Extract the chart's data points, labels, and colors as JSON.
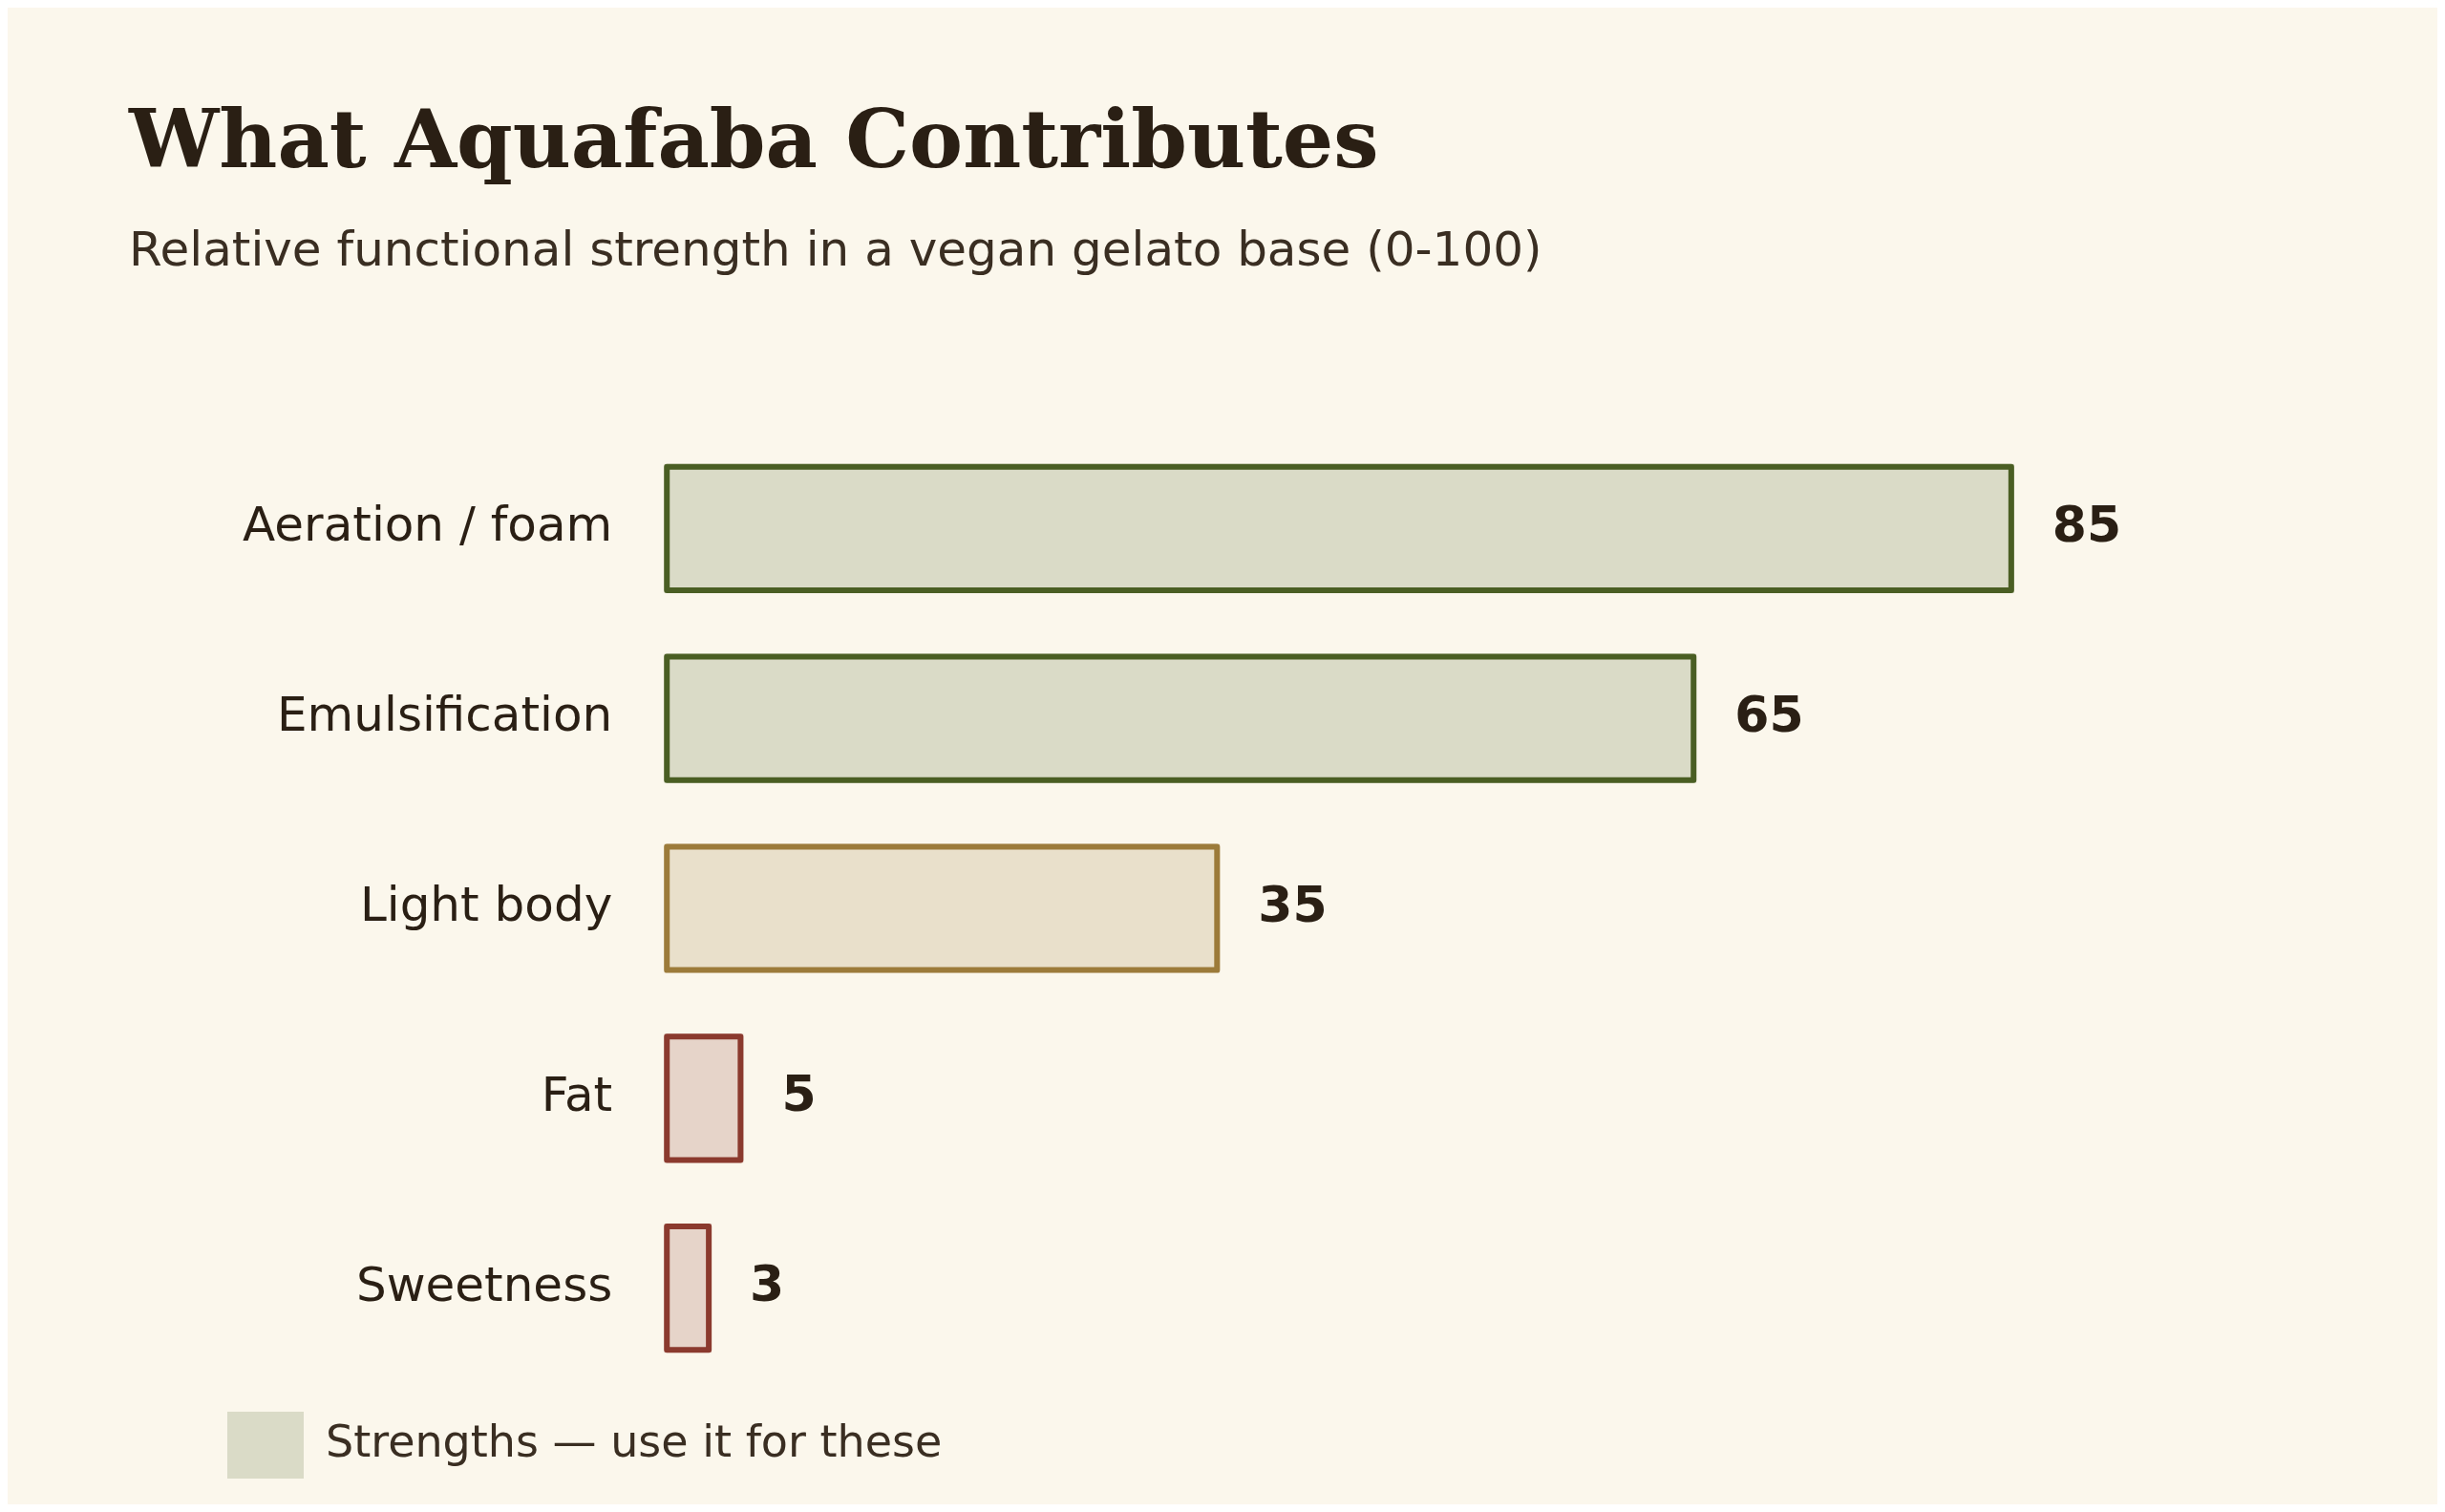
{
  "chart_data": {
    "type": "bar",
    "orientation": "horizontal",
    "title": "What Aquafaba Contributes",
    "subtitle": "Relative functional strength in a vegan gelato base (0-100)",
    "categories": [
      "Aeration / foam",
      "Emulsification",
      "Light body",
      "Fat",
      "Sweetness"
    ],
    "series": [
      {
        "name": "Strengths — use it for these",
        "color": "#4a5e23",
        "values": [
          85,
          65,
          null,
          null,
          null
        ]
      },
      {
        "color": "#9c7b3a",
        "values": [
          null,
          null,
          35,
          null,
          null
        ]
      },
      {
        "color": "#8b3a2e",
        "values": [
          null,
          null,
          null,
          5,
          3
        ]
      }
    ],
    "tick_labels": "y",
    "data_labels": true,
    "legend": "bottom",
    "grid": false
  }
}
